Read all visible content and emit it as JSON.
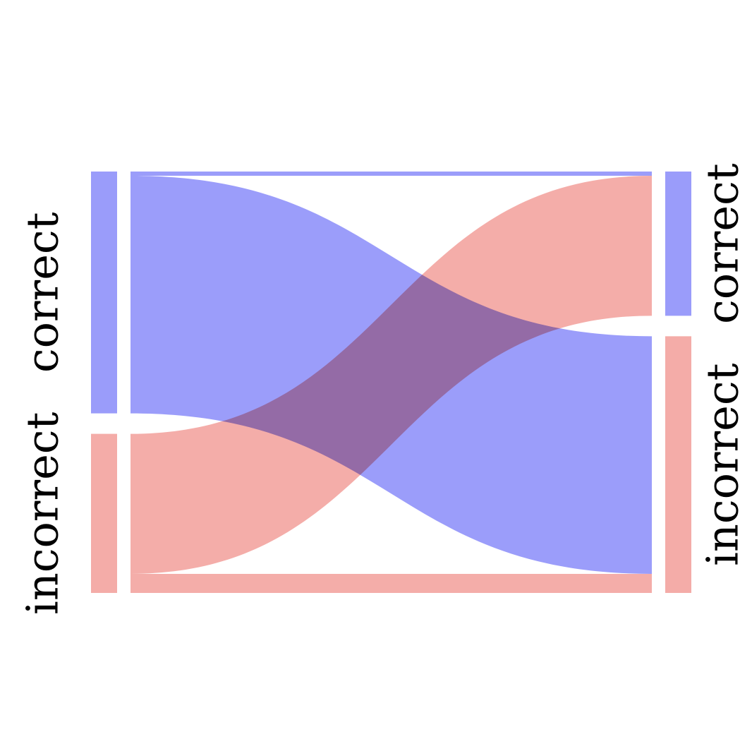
{
  "chart_data": {
    "type": "sankey",
    "left_labels": [
      "correct",
      "incorrect"
    ],
    "right_labels": [
      "correct",
      "incorrect"
    ],
    "colors": {
      "correct": "#9a9cfa",
      "incorrect": "#f4aca8"
    },
    "left_totals": {
      "correct": 114,
      "incorrect": 75
    },
    "right_totals": {
      "correct": 68,
      "incorrect": 121
    },
    "flows": [
      {
        "from": "correct",
        "to": "correct",
        "value": 2
      },
      {
        "from": "correct",
        "to": "incorrect",
        "value": 112
      },
      {
        "from": "incorrect",
        "to": "correct",
        "value": 66
      },
      {
        "from": "incorrect",
        "to": "incorrect",
        "value": 9
      }
    ]
  }
}
